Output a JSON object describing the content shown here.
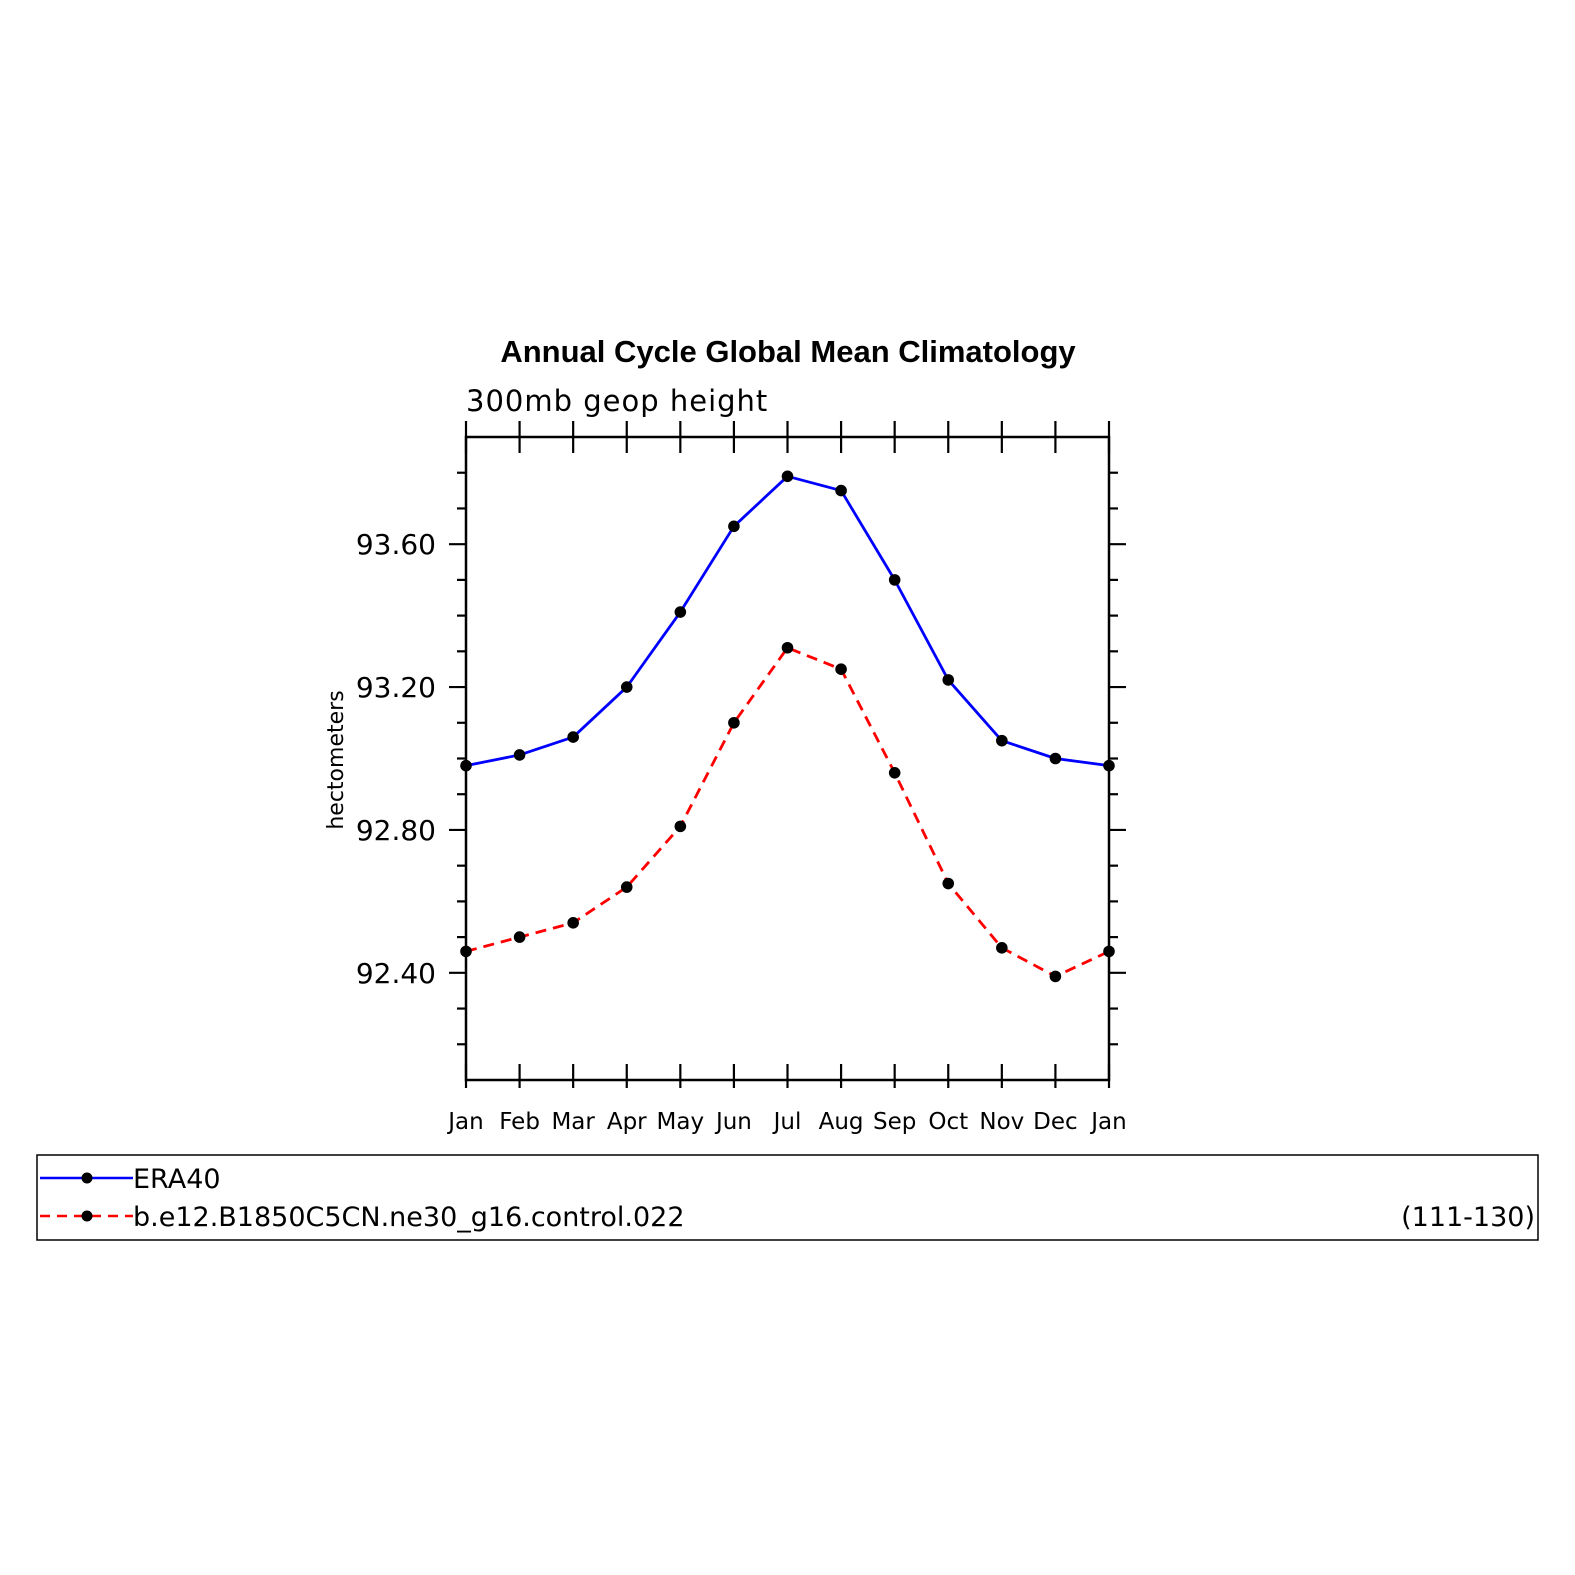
{
  "chart_data": {
    "type": "line",
    "title": "Annual Cycle Global Mean Climatology",
    "subtitle": "300mb geop height",
    "ylabel": "hectometers",
    "xlabel": "",
    "categories": [
      "Jan",
      "Feb",
      "Mar",
      "Apr",
      "May",
      "Jun",
      "Jul",
      "Aug",
      "Sep",
      "Oct",
      "Nov",
      "Dec",
      "Jan"
    ],
    "ylim": [
      92.1,
      93.9
    ],
    "yticks": [
      "92.40",
      "92.80",
      "93.20",
      "93.60"
    ],
    "grid": false,
    "series": [
      {
        "name": "ERA40",
        "color": "#0000ff",
        "line_style": "solid",
        "marker_color": "#000000",
        "values": [
          92.98,
          93.01,
          93.06,
          93.2,
          93.41,
          93.65,
          93.79,
          93.75,
          93.5,
          93.22,
          93.05,
          93.0,
          92.98
        ]
      },
      {
        "name": "b.e12.B1850C5CN.ne30_g16.control.022",
        "color": "#ff0000",
        "line_style": "dashed",
        "marker_color": "#000000",
        "values": [
          92.46,
          92.5,
          92.54,
          92.64,
          92.81,
          93.1,
          93.31,
          93.25,
          92.96,
          92.65,
          92.47,
          92.39,
          92.46
        ]
      }
    ],
    "legend": {
      "placement": "bottom",
      "period_label": "(111-130)"
    }
  }
}
